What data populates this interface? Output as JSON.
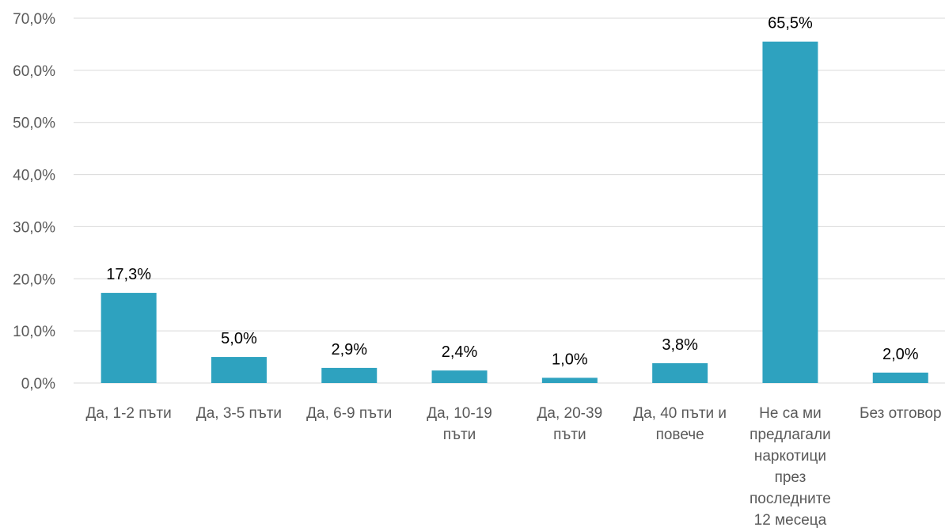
{
  "chart_data": {
    "type": "bar",
    "categories": [
      [
        "Да, 1-2 пъти"
      ],
      [
        "Да, 3-5 пъти"
      ],
      [
        "Да, 6-9 пъти"
      ],
      [
        "Да, 10-19",
        "пъти"
      ],
      [
        "Да, 20-39",
        "пъти"
      ],
      [
        "Да, 40 пъти и",
        "повече"
      ],
      [
        "Не са ми",
        "предлагали",
        "наркотици",
        "през",
        "последните",
        "12 месеца"
      ],
      [
        "Без отговор"
      ]
    ],
    "values": [
      17.3,
      5.0,
      2.9,
      2.4,
      1.0,
      3.8,
      65.5,
      2.0
    ],
    "data_labels": [
      "17,3%",
      "5,0%",
      "2,9%",
      "2,4%",
      "1,0%",
      "3,8%",
      "65,5%",
      "2,0%"
    ],
    "y_ticks": [
      0,
      10,
      20,
      30,
      40,
      50,
      60,
      70
    ],
    "y_tick_labels": [
      "0,0%",
      "10,0%",
      "20,0%",
      "30,0%",
      "40,0%",
      "50,0%",
      "60,0%",
      "70,0%"
    ],
    "ylim": [
      0,
      70
    ],
    "grid": true,
    "bar_color": "#2ea2bf",
    "title": "",
    "xlabel": "",
    "ylabel": ""
  }
}
